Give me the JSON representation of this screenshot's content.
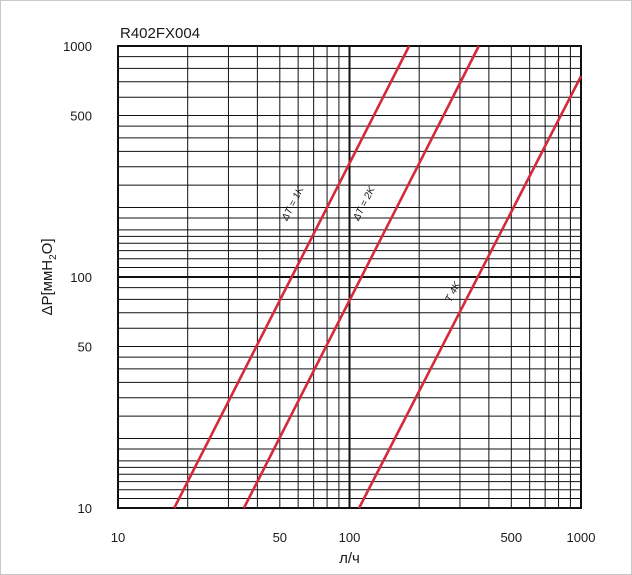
{
  "chart_data": {
    "type": "line",
    "title": "R402FX004",
    "xlabel": "л/ч",
    "ylabel": "ΔP[ммH2O]",
    "ylabel_parts": {
      "main": "ΔP[ммH",
      "sub": "2",
      "tail": "O]"
    },
    "x_scale": "log",
    "y_scale": "log",
    "xlim": [
      10,
      1000
    ],
    "ylim": [
      10,
      1000
    ],
    "x_ticks": [
      10,
      50,
      100,
      500,
      1000
    ],
    "x_tick_labels": [
      "10",
      "50",
      "100",
      "500",
      "1000"
    ],
    "y_ticks": [
      10,
      50,
      100,
      500,
      1000
    ],
    "y_tick_labels": [
      "10",
      "50",
      "100",
      "500",
      "1000"
    ],
    "grid": true,
    "series": [
      {
        "name": "ΔT = 1K",
        "color": "#d42a3a",
        "x": [
          17.5,
          181
        ],
        "y": [
          10,
          1000
        ]
      },
      {
        "name": "ΔT = 2K",
        "color": "#d42a3a",
        "x": [
          35,
          362
        ],
        "y": [
          10,
          1000
        ]
      },
      {
        "name": "T 4K",
        "color": "#d42a3a",
        "x": [
          110,
          1000
        ],
        "y": [
          10,
          740
        ]
      }
    ]
  }
}
